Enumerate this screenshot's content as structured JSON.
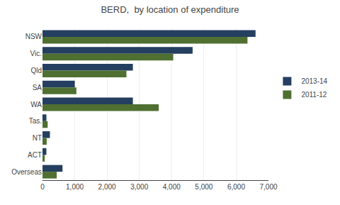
{
  "chart_data": {
    "type": "bar",
    "orientation": "horizontal",
    "title": "BERD,  by location of expenditure",
    "categories": [
      "NSW",
      "Vic.",
      "Qld",
      "SA",
      "WA",
      "Tas.",
      "NT",
      "ACT",
      "Overseas"
    ],
    "series": [
      {
        "name": "2013-14",
        "color": "#243F60",
        "values": [
          6600,
          4650,
          2800,
          1000,
          2800,
          120,
          230,
          120,
          620
        ]
      },
      {
        "name": "2011-12",
        "color": "#4F7031",
        "values": [
          6350,
          4050,
          2600,
          1050,
          3600,
          160,
          130,
          70,
          440
        ]
      }
    ],
    "xlim": [
      0,
      7000
    ],
    "xticks": [
      0,
      {
        "value": 1000,
        "label": "1,000"
      },
      {
        "value": 2000,
        "label": "2,000"
      },
      {
        "value": 3000,
        "label": "3,000"
      },
      {
        "value": 4000,
        "label": "4,000"
      },
      {
        "value": 5000,
        "label": "5,000"
      },
      {
        "value": 6000,
        "label": "6,000"
      },
      {
        "value": 7000,
        "label": "7,000"
      }
    ],
    "grid": true,
    "legend": "right"
  }
}
